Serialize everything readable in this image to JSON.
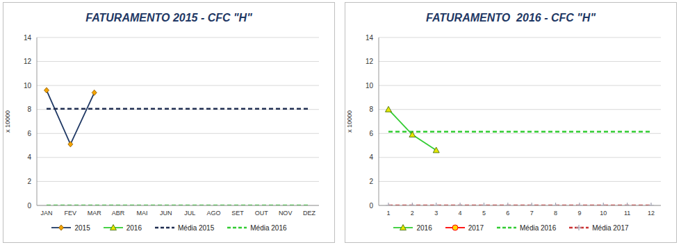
{
  "chart_data": [
    {
      "type": "line",
      "title": "FATURAMENTO 2015 - CFC \"H\"",
      "y_label": "x 10000",
      "categories": [
        "JAN",
        "FEV",
        "MAR",
        "ABR",
        "MAI",
        "JUN",
        "JUL",
        "AGO",
        "SET",
        "OUT",
        "NOV",
        "DEZ"
      ],
      "ylim": [
        0,
        14
      ],
      "yticks": [
        0,
        2,
        4,
        6,
        8,
        10,
        12,
        14
      ],
      "grid": true,
      "legend": "bottom",
      "series": [
        {
          "name": "2015",
          "color": "#1f3864",
          "marker": "diamond",
          "line_style": "solid",
          "values": [
            9.6,
            5.1,
            9.4,
            null,
            null,
            null,
            null,
            null,
            null,
            null,
            null,
            null
          ]
        },
        {
          "name": "2016",
          "color": "#33cc33",
          "marker": "triangle",
          "line_style": "solid",
          "values": [
            null,
            null,
            null,
            null,
            null,
            null,
            null,
            null,
            null,
            null,
            null,
            null
          ]
        },
        {
          "name": "Média 2015",
          "color": "#1f2d50",
          "marker": "none",
          "line_style": "dashed",
          "values": [
            8.05,
            8.05,
            8.05,
            8.05,
            8.05,
            8.05,
            8.05,
            8.05,
            8.05,
            8.05,
            8.05,
            8.05
          ]
        },
        {
          "name": "Média 2016",
          "color": "#33cc33",
          "marker": "none",
          "line_style": "dashed",
          "values": [
            0,
            0,
            0,
            0,
            0,
            0,
            0,
            0,
            0,
            0,
            0,
            0
          ]
        }
      ]
    },
    {
      "type": "line",
      "title": "FATURAMENTO  2016 - CFC \"H\"",
      "y_label": "x 10000",
      "categories": [
        "1",
        "2",
        "3",
        "4",
        "5",
        "6",
        "7",
        "8",
        "9",
        "10",
        "11",
        "12"
      ],
      "ylim": [
        0,
        14
      ],
      "yticks": [
        0,
        2,
        4,
        6,
        8,
        10,
        12,
        14
      ],
      "grid": true,
      "legend": "bottom",
      "series": [
        {
          "name": "2016",
          "color": "#33cc33",
          "marker": "triangle",
          "line_style": "solid",
          "values": [
            8.0,
            5.9,
            4.6,
            null,
            null,
            null,
            null,
            null,
            null,
            null,
            null,
            null
          ]
        },
        {
          "name": "2017",
          "color": "#ff0000",
          "marker": "circle",
          "line_style": "solid",
          "values": [
            null,
            null,
            null,
            null,
            null,
            null,
            null,
            null,
            null,
            null,
            null,
            null
          ]
        },
        {
          "name": "Média 2016",
          "color": "#33cc33",
          "marker": "none",
          "line_style": "dashed",
          "values": [
            6.15,
            6.15,
            6.15,
            6.15,
            6.15,
            6.15,
            6.15,
            6.15,
            6.15,
            6.15,
            6.15,
            6.15
          ]
        },
        {
          "name": "Média 2017",
          "color": "#cc3333",
          "marker": "plus",
          "line_style": "dashed",
          "values": [
            0,
            0,
            0,
            0,
            0,
            0,
            0,
            0,
            0,
            0,
            0,
            0
          ]
        }
      ]
    }
  ]
}
